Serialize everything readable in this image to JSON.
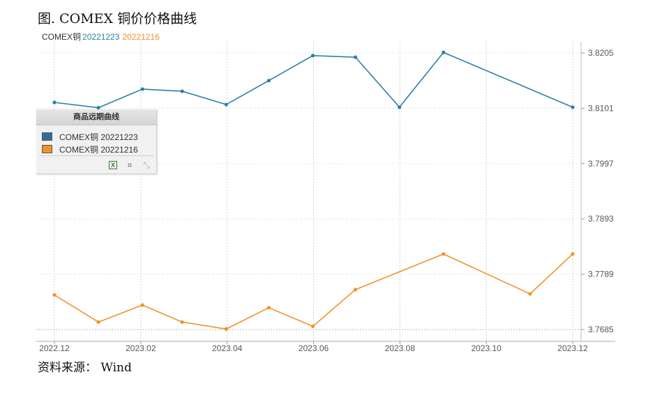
{
  "title": "图. COMEX 铜价价格曲线",
  "source": "资料来源： Wind",
  "header": {
    "prefix": "COMEX铜",
    "series1": "20221223",
    "series2": "20221216"
  },
  "colors": {
    "series1": "#2e7fa6",
    "series2": "#f0922b"
  },
  "legend": {
    "title": "商品远期曲线",
    "items": [
      {
        "label": "COMEX铜 20221223",
        "color": "#2e6f99"
      },
      {
        "label": "COMEX铜 20221216",
        "color": "#f0922b"
      }
    ],
    "tools": {
      "excel": "excel-icon",
      "crop": "crop-icon",
      "reset": "reset-icon"
    }
  },
  "chart_data": {
    "type": "line",
    "x_ticks": [
      "2022.12",
      "2023.02",
      "2023.04",
      "2023.06",
      "2023.08",
      "2023.10",
      "2023.12"
    ],
    "y_ticks": [
      3.7685,
      3.7789,
      3.7893,
      3.7997,
      3.8101,
      3.8205
    ],
    "ylim": [
      3.7685,
      3.8205
    ],
    "xlim": [
      "2022-12-01",
      "2023-12-01"
    ],
    "grid": true,
    "series": [
      {
        "name": "COMEX铜 20221223",
        "x": [
          "2022-12-01",
          "2023-01-01",
          "2023-02-01",
          "2023-03-01",
          "2023-04-01",
          "2023-05-01",
          "2023-06-01",
          "2023-07-01",
          "2023-08-01",
          "2023-09-01",
          "2023-12-01"
        ],
        "values": [
          3.8112,
          3.8102,
          3.8137,
          3.8133,
          3.8108,
          3.8153,
          3.82,
          3.8197,
          3.8103,
          3.8206,
          3.8103
        ]
      },
      {
        "name": "COMEX铜 20221216",
        "x": [
          "2022-12-01",
          "2023-01-01",
          "2023-02-01",
          "2023-03-01",
          "2023-04-01",
          "2023-05-01",
          "2023-06-01",
          "2023-07-01",
          "2023-09-01",
          "2023-11-01",
          "2023-12-01"
        ],
        "values": [
          3.775,
          3.7699,
          3.7731,
          3.7699,
          3.7686,
          3.7726,
          3.7691,
          3.776,
          3.7827,
          3.7752,
          3.7827
        ]
      }
    ]
  }
}
